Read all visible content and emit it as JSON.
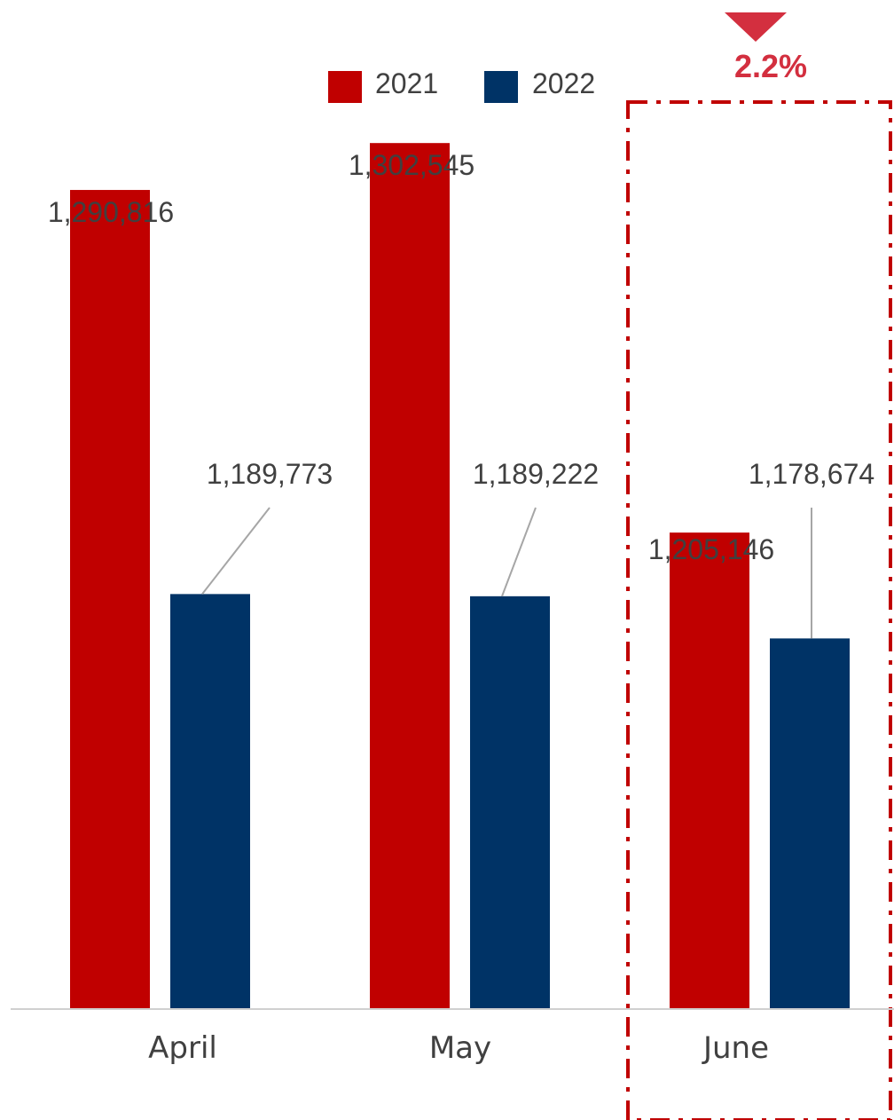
{
  "chart_data": {
    "type": "bar",
    "categories": [
      "April",
      "May",
      "June"
    ],
    "series": [
      {
        "name": "2021",
        "values": [
          1290816,
          1302545,
          1205146
        ],
        "labels": [
          "1,290,816",
          "1,302,545",
          "1,205,146"
        ],
        "color": "#C00000"
      },
      {
        "name": "2022",
        "values": [
          1189773,
          1189222,
          1178674
        ],
        "labels": [
          "1,189,773",
          "1,189,222",
          "1,178,674"
        ],
        "color": "#003366"
      }
    ],
    "title": "",
    "xlabel": "",
    "ylabel": "",
    "ylim": [
      1086000,
      1325000
    ],
    "grid": false,
    "legend": "top-center"
  },
  "annotation": {
    "text": "2.2%",
    "direction": "down",
    "category": "June",
    "color": "#D32F3F",
    "box_color": "#C00000"
  }
}
